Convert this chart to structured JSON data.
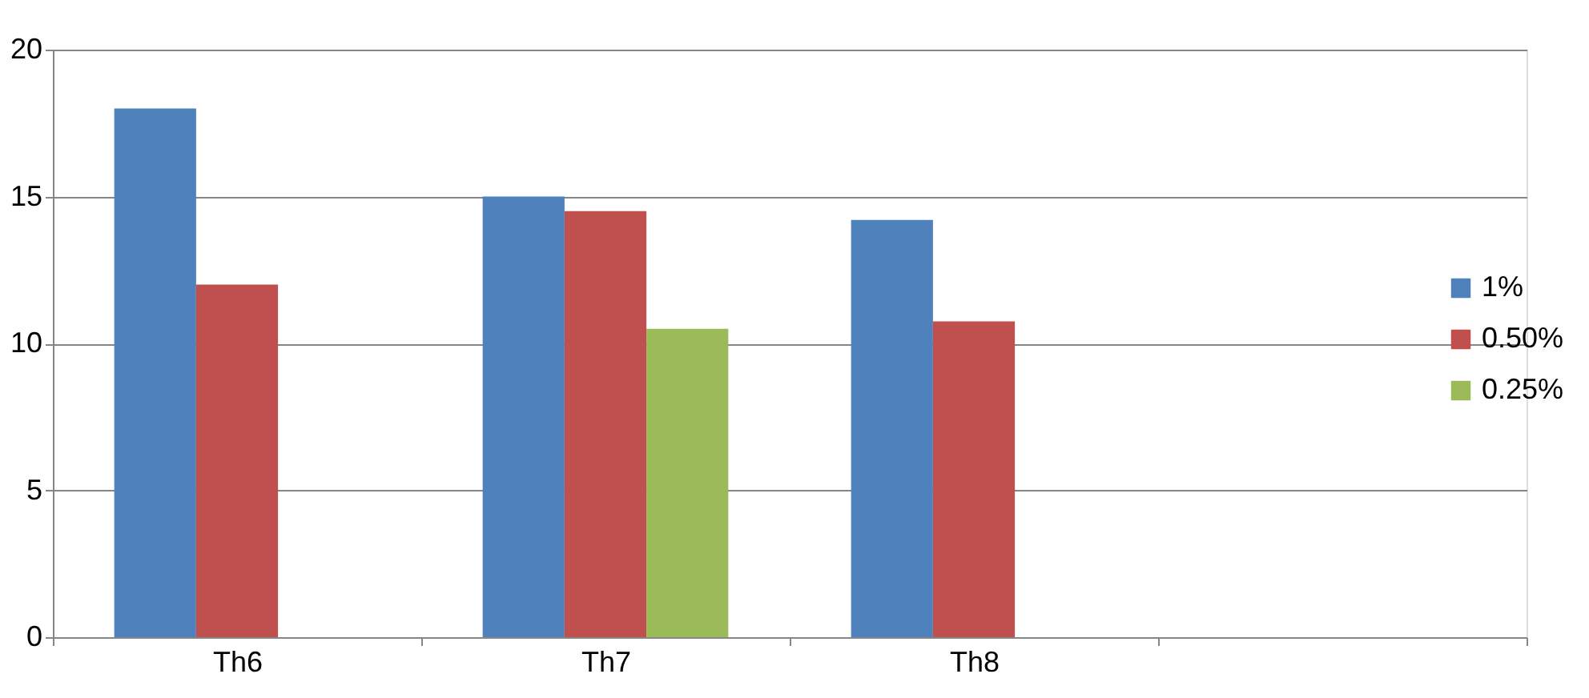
{
  "chart_data": {
    "type": "bar",
    "categories": [
      "Th6",
      "Th7",
      "Th8",
      null
    ],
    "series": [
      {
        "name": "1%",
        "color": "#4f81bd",
        "values": [
          18,
          15,
          14.2,
          null
        ]
      },
      {
        "name": "0.50%",
        "color": "#c0504d",
        "values": [
          12,
          14.5,
          10.75,
          null
        ]
      },
      {
        "name": "0.25%",
        "color": "#9bbb59",
        "values": [
          null,
          10.5,
          null,
          null
        ]
      }
    ],
    "ylim": [
      0,
      20
    ],
    "yticks": [
      0,
      5,
      10,
      15,
      20
    ],
    "grid": "y",
    "legend": "right"
  }
}
